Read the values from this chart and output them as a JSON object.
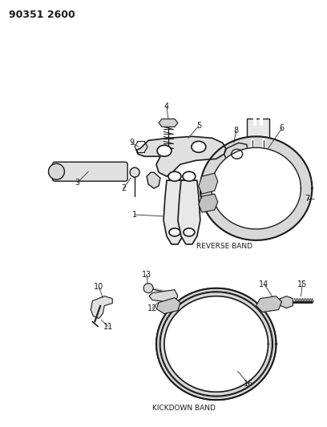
{
  "title": "90351 2600",
  "bg": "#ffffff",
  "lc": "#1a1a1a",
  "figsize": [
    4.08,
    5.33
  ],
  "dpi": 100,
  "reverse_band_label": "REVERSE BAND",
  "kickdown_band_label": "KICKDOWN BAND"
}
